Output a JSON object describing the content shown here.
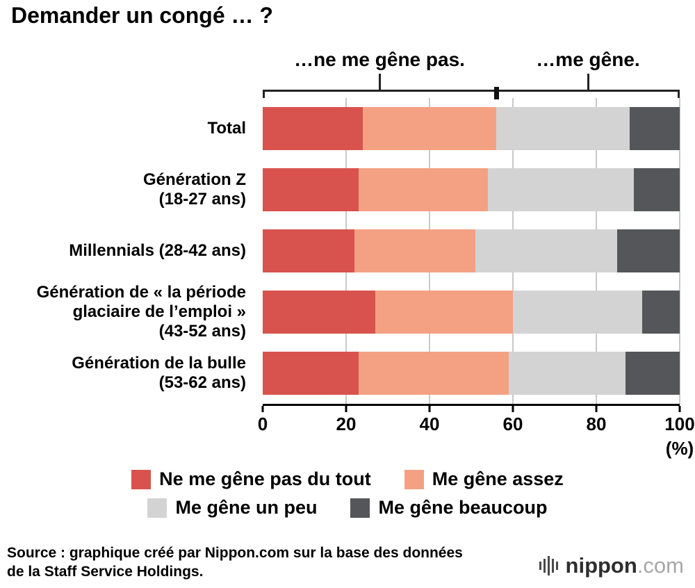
{
  "title": "Demander un congé … ?",
  "chart_data": {
    "type": "bar",
    "stacked": true,
    "orientation": "horizontal",
    "unit": "%",
    "xlim": [
      0,
      100
    ],
    "x_ticks": [
      0,
      20,
      40,
      60,
      80,
      100
    ],
    "x_axis_unit_label": "(%)",
    "categories": [
      [
        "Total"
      ],
      [
        "Génération Z",
        "(18-27 ans)"
      ],
      [
        "Millennials (28-42 ans)"
      ],
      [
        "Génération de « la période",
        "glaciaire de l’emploi »",
        "(43-52 ans)"
      ],
      [
        "Génération de la bulle",
        "(53-62 ans)"
      ]
    ],
    "series": [
      {
        "name": "Ne me gêne pas du tout",
        "color": "#d8534e",
        "values": [
          24,
          23,
          22,
          27,
          23
        ]
      },
      {
        "name": "Me gêne assez",
        "color": "#f4a183",
        "values": [
          32,
          31,
          29,
          33,
          36
        ]
      },
      {
        "name": "Me gêne un peu",
        "color": "#d3d3d3",
        "values": [
          32,
          35,
          34,
          31,
          28
        ]
      },
      {
        "name": "Me gêne beaucoup",
        "color": "#55565a",
        "values": [
          12,
          11,
          15,
          9,
          13
        ]
      }
    ],
    "annotations": {
      "left_label": "…ne me gêne pas.",
      "right_label": "…me gêne.",
      "divider_pct": 56
    }
  },
  "source": {
    "line1": "Source : graphique créé par Nippon.com sur la base des données",
    "line2": "de la Staff Service Holdings."
  },
  "logo": {
    "icon": "nippon-bars-icon",
    "name": "nippon",
    "domain": ".com"
  }
}
